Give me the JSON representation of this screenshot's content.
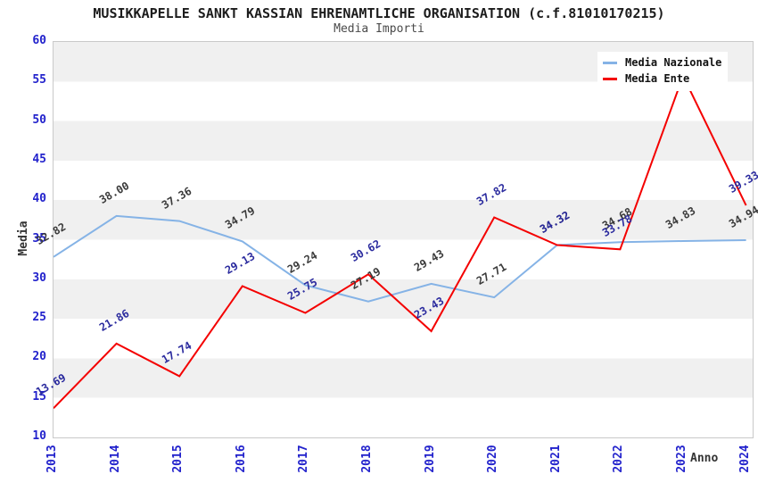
{
  "header": {
    "title": "MUSIKKAPELLE SANKT KASSIAN EHRENAMTLICHE ORGANISATION (c.f.81010170215)",
    "subtitle": "Media Importi"
  },
  "axes": {
    "y_label": "Media",
    "x_label": "Anno",
    "y_ticks": [
      60,
      55,
      50,
      45,
      40,
      35,
      30,
      25,
      20,
      15,
      10
    ],
    "tick_color": "#2222cc"
  },
  "legend": {
    "position": "top-right",
    "items": [
      {
        "label": "Media Nazionale",
        "color": "#85b3e6"
      },
      {
        "label": "Media Ente",
        "color": "#f40000"
      }
    ]
  },
  "colors": {
    "band": "#f0f0f0",
    "plot_border": "#c9c9c9",
    "title_text": "#1c1c1c",
    "tick_text": "#2222cc",
    "nazionale_line": "#85b3e6",
    "ente_line": "#f40000",
    "nazionale_label_text": "#3a3a3a",
    "ente_label_text": "#2a2a9e"
  },
  "chart_data": {
    "type": "line",
    "title": "MUSIKKAPELLE SANKT KASSIAN EHRENAMTLICHE ORGANISATION (c.f.81010170215)",
    "subtitle": "Media Importi",
    "xlabel": "Anno",
    "ylabel": "Media",
    "ylim": [
      10,
      60
    ],
    "y_tick_step": 5,
    "grid": "banded-horizontal",
    "legend_position": "top-right",
    "categories": [
      "2013",
      "2014",
      "2015",
      "2016",
      "2017",
      "2018",
      "2019",
      "2020",
      "2021",
      "2022",
      "2023",
      "2024"
    ],
    "series": [
      {
        "name": "Media Nazionale",
        "color": "#85b3e6",
        "label_color": "#3a3a3a",
        "values": [
          32.82,
          38.0,
          37.36,
          34.79,
          29.24,
          27.19,
          29.43,
          27.71,
          34.32,
          34.68,
          34.83,
          34.94
        ],
        "labels": [
          "32.82",
          "38.00",
          "37.36",
          "34.79",
          "29.24",
          "27.19",
          "29.43",
          "27.71",
          "34.32",
          "34.68",
          "34.83",
          "34.94"
        ]
      },
      {
        "name": "Media Ente",
        "color": "#f40000",
        "label_color": "#2a2a9e",
        "values": [
          13.69,
          21.86,
          17.74,
          29.13,
          25.75,
          30.62,
          23.43,
          37.82,
          34.32,
          33.78,
          55.7,
          39.33
        ],
        "labels": [
          "13.69",
          "21.86",
          "17.74",
          "29.13",
          "25.75",
          "30.62",
          "23.43",
          "37.82",
          "34.32",
          "33.78",
          null,
          "39.33"
        ],
        "note_label_2023": "hidden behind legend"
      }
    ]
  }
}
